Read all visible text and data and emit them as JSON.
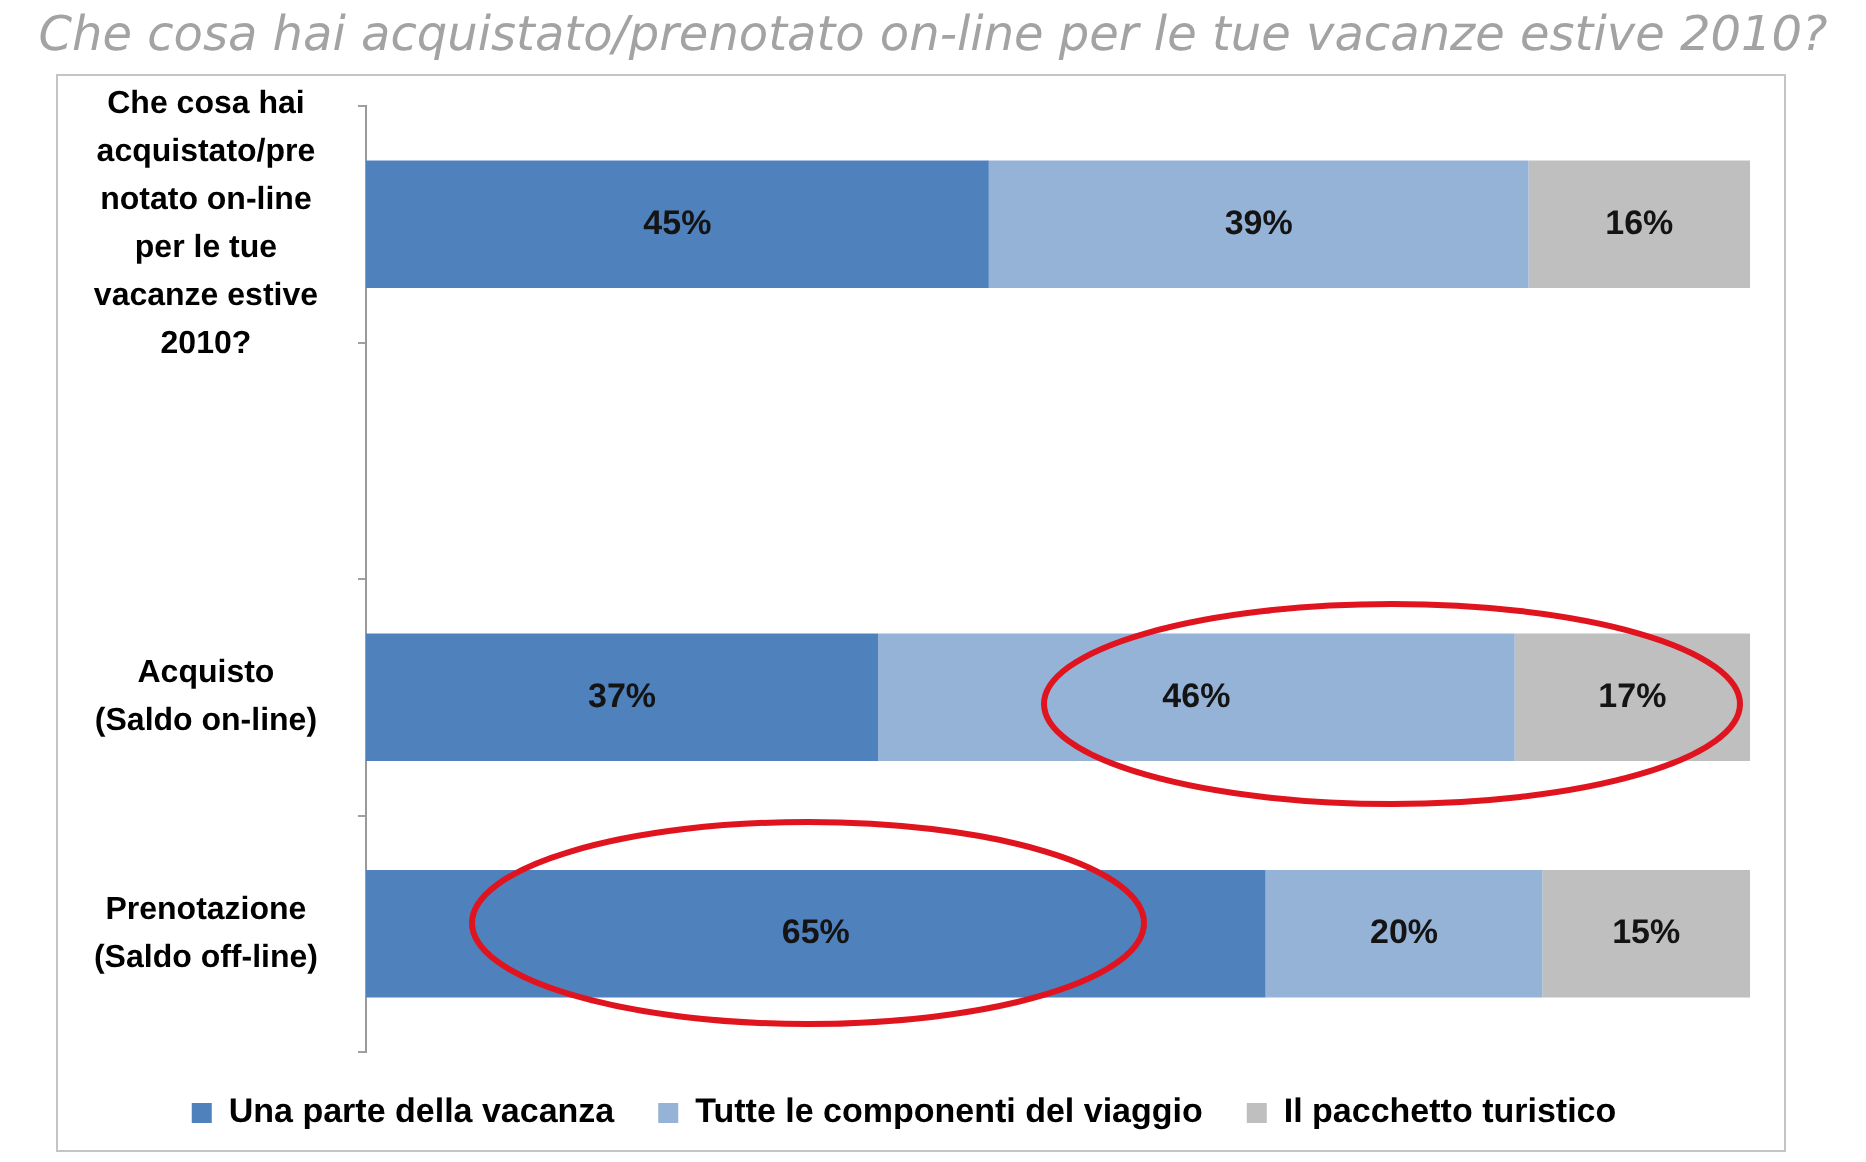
{
  "chart_data": {
    "type": "bar",
    "orientation": "horizontal",
    "stacked": true,
    "title": "Che cosa hai acquistato/prenotato on-line per le tue vacanze estive 2010?",
    "categories": [
      "Che cosa hai acquistato/prenotato on-line per le tue vacanze estive 2010?",
      null,
      "Acquisto (Saldo on-line)",
      "Prenotazione (Saldo off-line)"
    ],
    "series": [
      {
        "name": "Una parte della vacanza",
        "color": "#4f81bd",
        "values": [
          45,
          null,
          37,
          65
        ],
        "value_labels": [
          "45%",
          null,
          "37%",
          "65%"
        ]
      },
      {
        "name": "Tutte le componenti del viaggio",
        "color": "#95b3d7",
        "values": [
          39,
          null,
          46,
          20
        ],
        "value_labels": [
          "39%",
          null,
          "46%",
          "20%"
        ]
      },
      {
        "name": "Il pacchetto turistico",
        "color": "#bfbfbf",
        "values": [
          16,
          null,
          17,
          15
        ],
        "value_labels": [
          "16%",
          null,
          "17%",
          "15%"
        ]
      }
    ],
    "xlim": [
      0,
      100
    ],
    "tick_labels": "y",
    "grid": false,
    "legend": "bottom"
  }
}
